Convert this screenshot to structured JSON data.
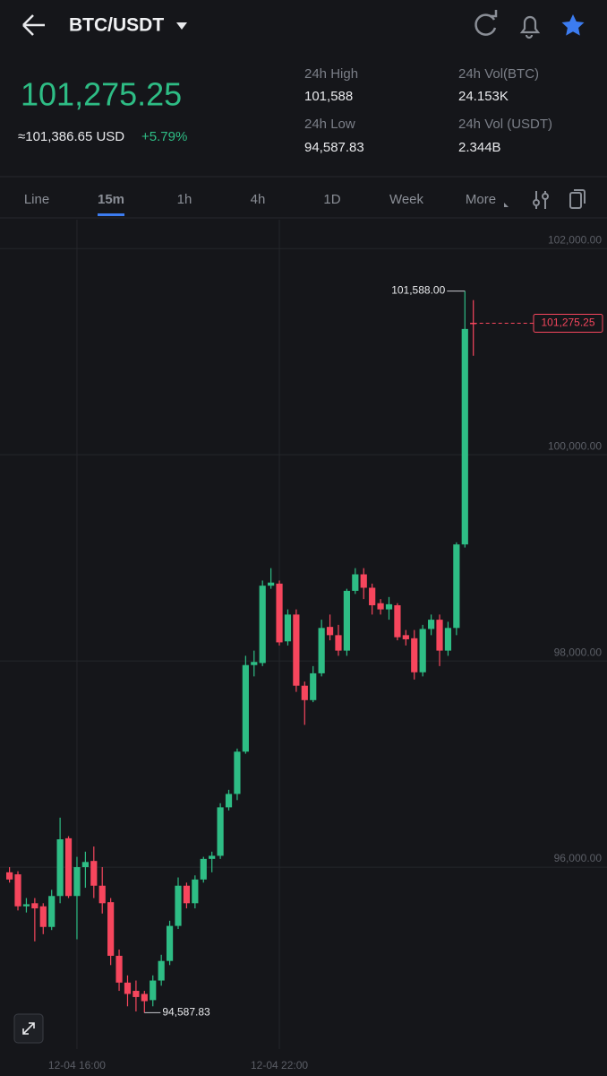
{
  "header": {
    "pair": "BTC/USDT",
    "price": "101,275.25",
    "usd_price": "≈101,386.65 USD",
    "change": "+5.79%",
    "stats": [
      {
        "label": "24h High",
        "value": "101,588"
      },
      {
        "label": "24h Vol(BTC)",
        "value": "24.153K"
      },
      {
        "label": "24h Low",
        "value": "94,587.83"
      },
      {
        "label": "24h Vol (USDT)",
        "value": "2.344B"
      }
    ]
  },
  "tabs": [
    "Line",
    "15m",
    "1h",
    "4h",
    "1D",
    "Week",
    "More"
  ],
  "chart_data": {
    "type": "candlestick",
    "up_color": "#2ebd85",
    "down_color": "#f6465d",
    "categories": [
      null,
      null,
      null,
      null,
      null,
      null,
      null,
      null,
      "12-04 16:00",
      null,
      null,
      null,
      null,
      null,
      null,
      null,
      null,
      null,
      null,
      null,
      null,
      null,
      null,
      null,
      null,
      null,
      null,
      null,
      null,
      null,
      null,
      null,
      "12-04 22:00",
      null,
      null,
      null,
      null,
      null,
      null,
      null,
      null,
      null,
      null,
      null,
      null,
      null,
      null,
      null,
      null,
      null,
      null,
      null,
      null,
      null,
      null,
      null
    ],
    "open": [
      95950,
      95930,
      95620,
      95650,
      95620,
      95420,
      95720,
      96280,
      95720,
      96000,
      96060,
      95820,
      95660,
      95140,
      94880,
      94800,
      94770,
      94710,
      94900,
      95090,
      95430,
      95820,
      95650,
      95880,
      96080,
      96110,
      96580,
      96710,
      97120,
      97960,
      97980,
      98730,
      98750,
      98190,
      98450,
      97760,
      97620,
      97880,
      98330,
      98250,
      98100,
      98680,
      98840,
      98710,
      98560,
      98500,
      98540,
      98250,
      98220,
      97890,
      98310,
      98400,
      98100,
      98320,
      99130,
      101280
    ],
    "high": [
      96000,
      95960,
      95700,
      95700,
      95650,
      95780,
      96480,
      96300,
      96100,
      96150,
      96200,
      96000,
      95700,
      95200,
      94950,
      94900,
      94800,
      94950,
      95150,
      95480,
      95900,
      95850,
      95920,
      96100,
      96150,
      96620,
      96750,
      97150,
      98050,
      98100,
      98780,
      98900,
      98780,
      98500,
      98500,
      97800,
      97950,
      98400,
      98450,
      98350,
      98700,
      98900,
      98900,
      98750,
      98600,
      98620,
      98560,
      98300,
      98300,
      98350,
      98450,
      98450,
      98380,
      99150,
      101588.0,
      101500
    ],
    "low": [
      95850,
      95580,
      95560,
      95280,
      95350,
      95390,
      95650,
      95700,
      95300,
      95800,
      95700,
      95550,
      95050,
      94800,
      94650,
      94600,
      94587.83,
      94650,
      94850,
      95050,
      95400,
      95600,
      95600,
      95850,
      95950,
      96080,
      96550,
      96650,
      97100,
      97850,
      97950,
      98700,
      98150,
      98150,
      97700,
      97380,
      97600,
      97850,
      98200,
      98050,
      98050,
      98650,
      98600,
      98450,
      98450,
      98400,
      98200,
      98150,
      97820,
      97850,
      98250,
      97950,
      98050,
      98250,
      99100,
      100960
    ],
    "close": [
      95880,
      95620,
      95640,
      95600,
      95420,
      95720,
      96270,
      95720,
      96000,
      96050,
      95820,
      95650,
      95140,
      94880,
      94770,
      94740,
      94700,
      94900,
      95090,
      95430,
      95820,
      95650,
      95880,
      96080,
      96110,
      96580,
      96710,
      97120,
      97960,
      97990,
      98730,
      98760,
      98180,
      98450,
      97760,
      97620,
      97880,
      98320,
      98250,
      98100,
      98680,
      98840,
      98710,
      98540,
      98500,
      98550,
      98230,
      98210,
      97890,
      98310,
      98400,
      98100,
      98320,
      99130,
      101220,
      101275.25
    ],
    "ylim": [
      94235,
      102280
    ],
    "yticks": [
      {
        "value": 96000,
        "label": "96,000.00"
      },
      {
        "value": 98000,
        "label": "98,000.00"
      },
      {
        "value": 100000,
        "label": "100,000.00"
      },
      {
        "value": 102000,
        "label": "102,000.00"
      }
    ],
    "grid": true,
    "high_label": "101,588.00",
    "low_label": "94,587.83",
    "last_price_label": "101,275.25"
  }
}
